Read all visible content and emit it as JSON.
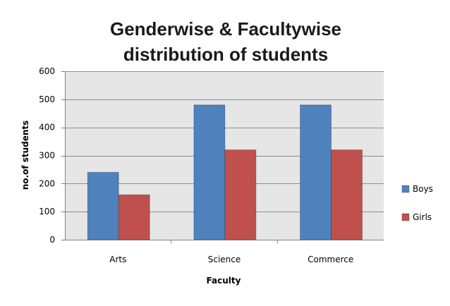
{
  "chart_data": {
    "type": "bar",
    "title": [
      "Genderwise & Facultywise",
      "distribution of students"
    ],
    "xlabel": "Faculty",
    "ylabel": "no.of students",
    "categories": [
      "Arts",
      "Science",
      "Commerce"
    ],
    "series": [
      {
        "name": "Boys",
        "values": [
          240,
          480,
          480
        ],
        "color": "#4f81bd"
      },
      {
        "name": "Girls",
        "values": [
          160,
          320,
          320
        ],
        "color": "#c0504d"
      }
    ],
    "ylim": [
      0,
      600
    ],
    "yticks": [
      0,
      100,
      200,
      300,
      400,
      500,
      600
    ],
    "grid": true,
    "legend": "right",
    "plot_background": "#e6e6e6",
    "gridline_color": "#8c8c8c"
  }
}
